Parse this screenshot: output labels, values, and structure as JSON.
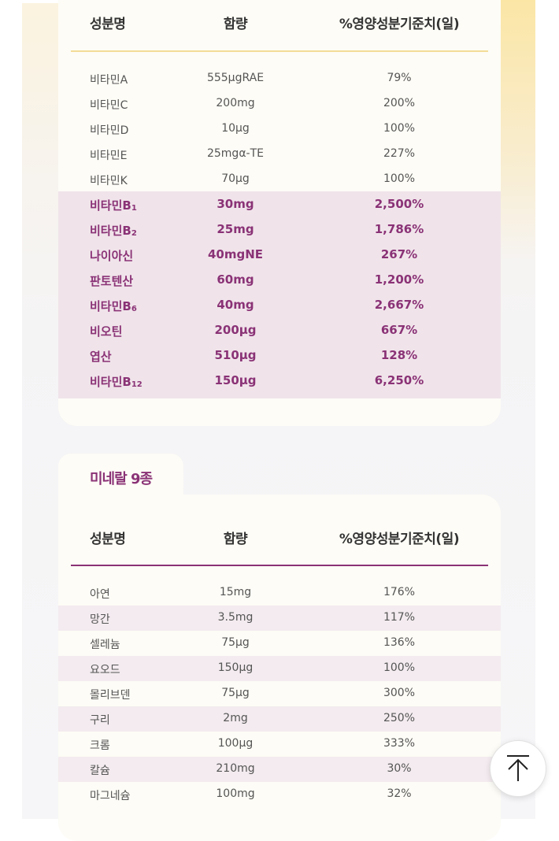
{
  "vitamins": {
    "headers": {
      "name": "성분명",
      "amount": "함량",
      "daily": "%영양성분기준치(일)"
    },
    "rows": [
      {
        "name": "비타민A",
        "amount": "555μgRAE",
        "daily": "79%"
      },
      {
        "name": "비타민C",
        "amount": "200mg",
        "daily": "200%"
      },
      {
        "name": "비타민D",
        "amount": "10μg",
        "daily": "100%"
      },
      {
        "name": "비타민E",
        "amount": "25mgα-TE",
        "daily": "227%"
      },
      {
        "name": "비타민K",
        "amount": "70μg",
        "daily": "100%"
      }
    ],
    "highlight_rows": [
      {
        "name": "비타민B",
        "sub": "1",
        "amount": "30mg",
        "daily": "2,500%"
      },
      {
        "name": "비타민B",
        "sub": "2",
        "amount": "25mg",
        "daily": "1,786%"
      },
      {
        "name": "나이아신",
        "sub": "",
        "amount": "40mgNE",
        "daily": "267%"
      },
      {
        "name": "판토텐산",
        "sub": "",
        "amount": "60mg",
        "daily": "1,200%"
      },
      {
        "name": "비타민B",
        "sub": "6",
        "amount": "40mg",
        "daily": "2,667%"
      },
      {
        "name": "비오틴",
        "sub": "",
        "amount": "200μg",
        "daily": "667%"
      },
      {
        "name": "엽산",
        "sub": "",
        "amount": "510μg",
        "daily": "128%"
      },
      {
        "name": "비타민B",
        "sub": "12",
        "amount": "150μg",
        "daily": "6,250%"
      }
    ],
    "divider_color": "#f3dc97",
    "highlight_color": "#8a3276"
  },
  "minerals": {
    "tab_label": "미네랄 9종",
    "headers": {
      "name": "성분명",
      "amount": "함량",
      "daily": "%영양성분기준치(일)"
    },
    "rows": [
      {
        "name": "아연",
        "amount": "15mg",
        "daily": "176%"
      },
      {
        "name": "망간",
        "amount": "3.5mg",
        "daily": "117%"
      },
      {
        "name": "셀레늄",
        "amount": "75μg",
        "daily": "136%"
      },
      {
        "name": "요오드",
        "amount": "150μg",
        "daily": "100%"
      },
      {
        "name": "몰리브덴",
        "amount": "75μg",
        "daily": "300%"
      },
      {
        "name": "구리",
        "amount": "2mg",
        "daily": "250%"
      },
      {
        "name": "크롬",
        "amount": "100μg",
        "daily": "333%"
      },
      {
        "name": "칼슘",
        "amount": "210mg",
        "daily": "30%"
      },
      {
        "name": "마그네슘",
        "amount": "100mg",
        "daily": "32%"
      }
    ],
    "divider_color": "#8a3276"
  },
  "scroll_top": {
    "icon": "arrow-up-icon"
  }
}
